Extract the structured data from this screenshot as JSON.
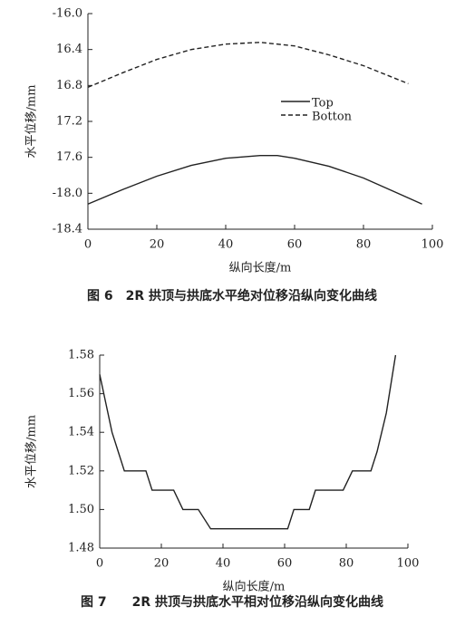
{
  "chart_data": [
    {
      "type": "line",
      "caption": "图 6　2R 拱顶与拱底水平绝对位移沿纵向变化曲线",
      "xlabel": "纵向长度/m",
      "ylabel": "水平位移/mm",
      "xlim": [
        0,
        100
      ],
      "xticks": [
        0,
        20,
        40,
        60,
        80,
        100
      ],
      "ylim": [
        -18.4,
        -16.0
      ],
      "yticks": [
        {
          "value": -16.0,
          "label": "-16.0"
        },
        {
          "value": -16.4,
          "label": "16.4"
        },
        {
          "value": -16.8,
          "label": "16.8"
        },
        {
          "value": -17.2,
          "label": "17.2"
        },
        {
          "value": -17.6,
          "label": "17.6"
        },
        {
          "value": -18.0,
          "label": "-18.0"
        },
        {
          "value": -18.4,
          "label": "-18.4"
        }
      ],
      "series": [
        {
          "name": "Top",
          "color": "#222222",
          "linestyle": "solid",
          "x": [
            0,
            10,
            20,
            30,
            40,
            50,
            55,
            60,
            70,
            80,
            90,
            97
          ],
          "values": [
            -18.12,
            -17.96,
            -17.81,
            -17.69,
            -17.61,
            -17.58,
            -17.58,
            -17.61,
            -17.7,
            -17.83,
            -18.0,
            -18.12
          ]
        },
        {
          "name": "Botton",
          "color": "#222222",
          "linestyle": "dashed",
          "x": [
            0,
            10,
            20,
            30,
            40,
            50,
            60,
            70,
            80,
            93
          ],
          "values": [
            -16.82,
            -16.66,
            -16.51,
            -16.4,
            -16.34,
            -16.32,
            -16.36,
            -16.46,
            -16.58,
            -16.78
          ]
        }
      ]
    },
    {
      "type": "line",
      "caption": "图 7　　2R 拱顶与拱底水平相对位移沿纵向变化曲线",
      "xlabel": "纵向长度/m",
      "ylabel": "水平位移/mm",
      "xlim": [
        0,
        100
      ],
      "xticks": [
        0,
        20,
        40,
        60,
        80,
        100
      ],
      "ylim": [
        1.48,
        1.58
      ],
      "yticks": [
        1.48,
        {
          "value": 1.5,
          "label": "1.50"
        },
        1.52,
        1.54,
        1.56,
        1.58
      ],
      "series": [
        {
          "color": "#222222",
          "linestyle": "solid",
          "x": [
            0,
            2,
            4,
            6,
            8,
            15,
            17,
            24,
            27,
            32,
            36,
            61,
            63,
            68,
            70,
            79,
            82,
            88,
            90,
            93,
            96
          ],
          "values": [
            1.57,
            1.555,
            1.54,
            1.53,
            1.52,
            1.52,
            1.51,
            1.51,
            1.5,
            1.5,
            1.49,
            1.49,
            1.5,
            1.5,
            1.51,
            1.51,
            1.52,
            1.52,
            1.53,
            1.55,
            1.58
          ]
        }
      ]
    }
  ]
}
